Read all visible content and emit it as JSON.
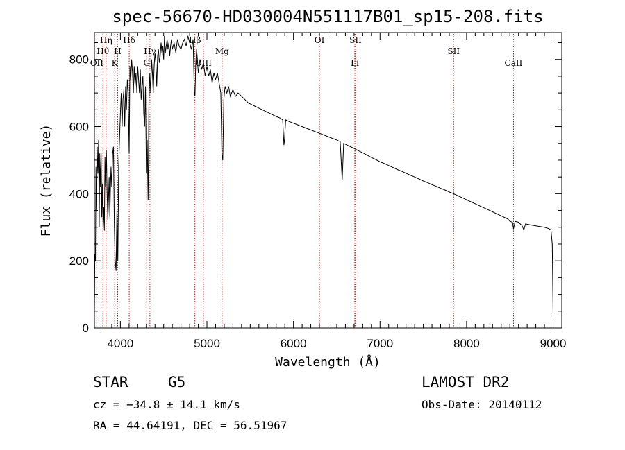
{
  "chart_data": {
    "type": "line",
    "title": "spec-56670-HD030004N551117B01_sp15-208.fits",
    "xlabel": "Wavelength (Å)",
    "ylabel": "Flux (relative)",
    "xlim": [
      3700,
      9100
    ],
    "ylim": [
      0,
      880
    ],
    "x_ticks": [
      4000,
      5000,
      6000,
      7000,
      8000,
      9000
    ],
    "y_ticks": [
      0,
      200,
      400,
      600,
      800
    ],
    "series": [
      {
        "points": [
          [
            3700,
            40
          ],
          [
            3705,
            220
          ],
          [
            3712,
            200
          ],
          [
            3718,
            480
          ],
          [
            3725,
            350
          ],
          [
            3732,
            540
          ],
          [
            3740,
            460
          ],
          [
            3748,
            560
          ],
          [
            3755,
            300
          ],
          [
            3762,
            520
          ],
          [
            3770,
            420
          ],
          [
            3778,
            520
          ],
          [
            3785,
            330
          ],
          [
            3792,
            430
          ],
          [
            3800,
            300
          ],
          [
            3808,
            360
          ],
          [
            3815,
            290
          ],
          [
            3822,
            510
          ],
          [
            3830,
            420
          ],
          [
            3838,
            530
          ],
          [
            3846,
            410
          ],
          [
            3855,
            320
          ],
          [
            3862,
            380
          ],
          [
            3870,
            450
          ],
          [
            3878,
            330
          ],
          [
            3885,
            420
          ],
          [
            3892,
            480
          ],
          [
            3900,
            420
          ],
          [
            3910,
            520
          ],
          [
            3920,
            540
          ],
          [
            3930,
            300
          ],
          [
            3940,
            200
          ],
          [
            3950,
            170
          ],
          [
            3960,
            350
          ],
          [
            3970,
            200
          ],
          [
            3980,
            480
          ],
          [
            3990,
            560
          ],
          [
            4000,
            640
          ],
          [
            4010,
            700
          ],
          [
            4020,
            600
          ],
          [
            4030,
            680
          ],
          [
            4040,
            710
          ],
          [
            4050,
            600
          ],
          [
            4060,
            720
          ],
          [
            4070,
            650
          ],
          [
            4080,
            740
          ],
          [
            4090,
            700
          ],
          [
            4101,
            520
          ],
          [
            4110,
            780
          ],
          [
            4120,
            740
          ],
          [
            4130,
            800
          ],
          [
            4140,
            760
          ],
          [
            4150,
            700
          ],
          [
            4160,
            780
          ],
          [
            4170,
            720
          ],
          [
            4180,
            760
          ],
          [
            4190,
            700
          ],
          [
            4200,
            780
          ],
          [
            4210,
            740
          ],
          [
            4220,
            700
          ],
          [
            4230,
            770
          ],
          [
            4240,
            680
          ],
          [
            4250,
            720
          ],
          [
            4260,
            750
          ],
          [
            4270,
            640
          ],
          [
            4280,
            600
          ],
          [
            4290,
            720
          ],
          [
            4300,
            460
          ],
          [
            4310,
            560
          ],
          [
            4320,
            380
          ],
          [
            4330,
            680
          ],
          [
            4340,
            760
          ],
          [
            4350,
            700
          ],
          [
            4360,
            800
          ],
          [
            4370,
            760
          ],
          [
            4380,
            700
          ],
          [
            4390,
            780
          ],
          [
            4400,
            820
          ],
          [
            4410,
            790
          ],
          [
            4420,
            720
          ],
          [
            4430,
            810
          ],
          [
            4440,
            830
          ],
          [
            4450,
            790
          ],
          [
            4460,
            810
          ],
          [
            4470,
            850
          ],
          [
            4480,
            820
          ],
          [
            4490,
            840
          ],
          [
            4500,
            800
          ],
          [
            4510,
            870
          ],
          [
            4520,
            820
          ],
          [
            4530,
            840
          ],
          [
            4540,
            860
          ],
          [
            4550,
            830
          ],
          [
            4560,
            850
          ],
          [
            4570,
            810
          ],
          [
            4580,
            840
          ],
          [
            4590,
            860
          ],
          [
            4600,
            830
          ],
          [
            4620,
            850
          ],
          [
            4640,
            820
          ],
          [
            4660,
            860
          ],
          [
            4680,
            840
          ],
          [
            4700,
            830
          ],
          [
            4720,
            850
          ],
          [
            4740,
            860
          ],
          [
            4760,
            840
          ],
          [
            4780,
            870
          ],
          [
            4800,
            850
          ],
          [
            4820,
            830
          ],
          [
            4840,
            860
          ],
          [
            4855,
            700
          ],
          [
            4862,
            690
          ],
          [
            4870,
            780
          ],
          [
            4880,
            830
          ],
          [
            4890,
            800
          ],
          [
            4900,
            760
          ],
          [
            4920,
            800
          ],
          [
            4940,
            770
          ],
          [
            4960,
            790
          ],
          [
            4980,
            750
          ],
          [
            5000,
            780
          ],
          [
            5020,
            750
          ],
          [
            5040,
            770
          ],
          [
            5060,
            730
          ],
          [
            5080,
            760
          ],
          [
            5100,
            740
          ],
          [
            5120,
            760
          ],
          [
            5140,
            730
          ],
          [
            5160,
            700
          ],
          [
            5172,
            520
          ],
          [
            5183,
            500
          ],
          [
            5195,
            680
          ],
          [
            5210,
            720
          ],
          [
            5230,
            700
          ],
          [
            5250,
            720
          ],
          [
            5270,
            690
          ],
          [
            5300,
            710
          ],
          [
            5330,
            690
          ],
          [
            5360,
            700
          ],
          [
            5400,
            690
          ],
          [
            5440,
            680
          ],
          [
            5480,
            670
          ],
          [
            5520,
            665
          ],
          [
            5560,
            660
          ],
          [
            5600,
            655
          ],
          [
            5640,
            650
          ],
          [
            5680,
            645
          ],
          [
            5720,
            640
          ],
          [
            5760,
            635
          ],
          [
            5800,
            630
          ],
          [
            5850,
            625
          ],
          [
            5875,
            620
          ],
          [
            5890,
            545
          ],
          [
            5896,
            560
          ],
          [
            5910,
            620
          ],
          [
            5950,
            615
          ],
          [
            6000,
            610
          ],
          [
            6050,
            605
          ],
          [
            6100,
            600
          ],
          [
            6150,
            595
          ],
          [
            6200,
            590
          ],
          [
            6250,
            585
          ],
          [
            6300,
            580
          ],
          [
            6350,
            575
          ],
          [
            6400,
            570
          ],
          [
            6450,
            565
          ],
          [
            6500,
            560
          ],
          [
            6540,
            555
          ],
          [
            6563,
            440
          ],
          [
            6580,
            550
          ],
          [
            6620,
            545
          ],
          [
            6660,
            540
          ],
          [
            6700,
            535
          ],
          [
            6750,
            528
          ],
          [
            6800,
            522
          ],
          [
            6850,
            515
          ],
          [
            6900,
            508
          ],
          [
            6950,
            502
          ],
          [
            7000,
            495
          ],
          [
            7050,
            490
          ],
          [
            7100,
            484
          ],
          [
            7150,
            478
          ],
          [
            7200,
            472
          ],
          [
            7250,
            467
          ],
          [
            7300,
            461
          ],
          [
            7350,
            455
          ],
          [
            7400,
            450
          ],
          [
            7450,
            444
          ],
          [
            7500,
            438
          ],
          [
            7550,
            433
          ],
          [
            7600,
            427
          ],
          [
            7650,
            422
          ],
          [
            7700,
            416
          ],
          [
            7750,
            411
          ],
          [
            7800,
            405
          ],
          [
            7850,
            400
          ],
          [
            7900,
            394
          ],
          [
            7950,
            388
          ],
          [
            8000,
            382
          ],
          [
            8050,
            376
          ],
          [
            8100,
            370
          ],
          [
            8150,
            364
          ],
          [
            8200,
            358
          ],
          [
            8250,
            352
          ],
          [
            8300,
            346
          ],
          [
            8350,
            340
          ],
          [
            8400,
            334
          ],
          [
            8450,
            328
          ],
          [
            8480,
            324
          ],
          [
            8500,
            318
          ],
          [
            8530,
            315
          ],
          [
            8542,
            295
          ],
          [
            8560,
            318
          ],
          [
            8600,
            315
          ],
          [
            8640,
            305
          ],
          [
            8662,
            292
          ],
          [
            8680,
            310
          ],
          [
            8720,
            308
          ],
          [
            8760,
            306
          ],
          [
            8800,
            304
          ],
          [
            8850,
            302
          ],
          [
            8900,
            300
          ],
          [
            8950,
            296
          ],
          [
            8975,
            292
          ],
          [
            8990,
            250
          ],
          [
            9000,
            40
          ]
        ]
      }
    ],
    "grid": false,
    "line_markers": [
      {
        "label": "OII",
        "x": 3727,
        "row": 3
      },
      {
        "label": "Hθ",
        "x": 3798,
        "row": 2
      },
      {
        "label": "Hη",
        "x": 3835,
        "row": 1
      },
      {
        "label": "K",
        "x": 3934,
        "row": 3
      },
      {
        "label": "H",
        "x": 3969,
        "row": 2
      },
      {
        "label": "Hδ",
        "x": 4102,
        "row": 1
      },
      {
        "label": "G",
        "x": 4304,
        "row": 3
      },
      {
        "label": "Hγ",
        "x": 4341,
        "row": 2
      },
      {
        "label": "Hβ",
        "x": 4861,
        "row": 1
      },
      {
        "label": "OIII",
        "x": 4959,
        "row": 3
      },
      {
        "label": "Mg",
        "x": 5175,
        "row": 2
      },
      {
        "label": "OI",
        "x": 6300,
        "row": 1
      },
      {
        "label": "Li",
        "x": 6708,
        "row": 3
      },
      {
        "label": "SII",
        "x": 6717,
        "row": 1
      },
      {
        "label": "SII",
        "x": 7850,
        "row": 2
      },
      {
        "label": "CaII",
        "x": 8542,
        "row": 3
      }
    ]
  },
  "info": {
    "object_type": "STAR",
    "subclass": "G5",
    "survey": "LAMOST DR2",
    "cz": "cz = −34.8 ± 14.1 km/s",
    "obs_date": "Obs-Date: 20140112",
    "coords": "RA =  44.64191, DEC =  56.51967"
  }
}
